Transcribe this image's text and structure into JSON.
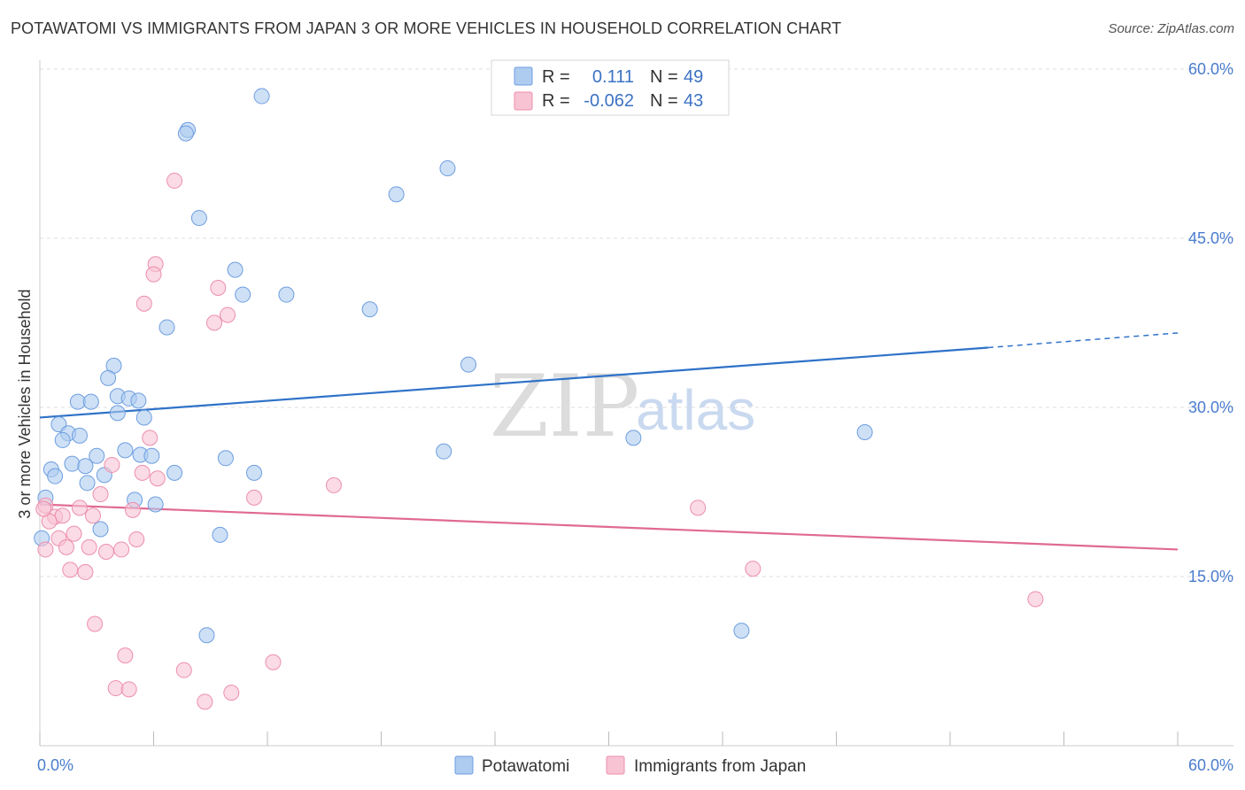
{
  "header": {
    "title": "POTAWATOMI VS IMMIGRANTS FROM JAPAN 3 OR MORE VEHICLES IN HOUSEHOLD CORRELATION CHART",
    "source": "Source: ZipAtlas.com"
  },
  "watermark": {
    "zip": "ZIP",
    "atlas": "atlas"
  },
  "legend_box": {
    "rows": [
      {
        "r_label": "R =",
        "r_value": "0.111",
        "n_label": "N =",
        "n_value": "49",
        "color": "#aecbf0",
        "stroke": "#6d9ee0"
      },
      {
        "r_label": "R =",
        "r_value": "-0.062",
        "n_label": "N =",
        "n_value": "43",
        "color": "#f8c3d3",
        "stroke": "#ec8fac"
      }
    ]
  },
  "bottom_legend": {
    "items": [
      {
        "label": "Potawatomi",
        "color": "#aecbf0",
        "stroke": "#6d9ee0"
      },
      {
        "label": "Immigrants from Japan",
        "color": "#f8c3d3",
        "stroke": "#ec8fac"
      }
    ]
  },
  "chart_data": {
    "type": "scatter",
    "title": "POTAWATOMI VS IMMIGRANTS FROM JAPAN 3 OR MORE VEHICLES IN HOUSEHOLD CORRELATION CHART",
    "xlabel": "",
    "ylabel": "3 or more Vehicles in Household",
    "xlim": [
      0,
      60
    ],
    "ylim": [
      0,
      60
    ],
    "x_tick_labels": [
      "0.0%",
      "60.0%"
    ],
    "y_ticks": [
      15,
      30,
      45,
      60
    ],
    "y_tick_labels": [
      "15.0%",
      "30.0%",
      "45.0%",
      "60.0%"
    ],
    "grid": true,
    "series": [
      {
        "name": "Potawatomi",
        "color": "#aecbf0",
        "stroke": "#6d9ee0",
        "line_color": "#2f72c8",
        "trend": {
          "x0": 0,
          "y0": 29.1,
          "x1": 50,
          "y1": 35.3,
          "dash_to_x": 60,
          "dash_to_y": 36.6
        },
        "points": [
          [
            11.7,
            57.6
          ],
          [
            7.8,
            54.6
          ],
          [
            7.7,
            54.3
          ],
          [
            21.5,
            51.2
          ],
          [
            18.8,
            48.9
          ],
          [
            8.4,
            46.8
          ],
          [
            10.3,
            42.2
          ],
          [
            10.7,
            40.0
          ],
          [
            13.0,
            40.0
          ],
          [
            17.4,
            38.7
          ],
          [
            6.7,
            37.1
          ],
          [
            22.6,
            33.8
          ],
          [
            3.9,
            33.7
          ],
          [
            3.6,
            32.6
          ],
          [
            2.0,
            30.5
          ],
          [
            2.7,
            30.5
          ],
          [
            4.1,
            31.0
          ],
          [
            4.7,
            30.8
          ],
          [
            5.2,
            30.6
          ],
          [
            4.1,
            29.5
          ],
          [
            5.5,
            29.1
          ],
          [
            1.0,
            28.5
          ],
          [
            1.5,
            27.7
          ],
          [
            2.1,
            27.5
          ],
          [
            1.2,
            27.1
          ],
          [
            3.0,
            25.7
          ],
          [
            4.5,
            26.2
          ],
          [
            5.3,
            25.8
          ],
          [
            5.9,
            25.7
          ],
          [
            9.8,
            25.5
          ],
          [
            21.3,
            26.1
          ],
          [
            31.3,
            27.3
          ],
          [
            43.5,
            27.8
          ],
          [
            1.7,
            25.0
          ],
          [
            2.4,
            24.8
          ],
          [
            0.6,
            24.5
          ],
          [
            7.1,
            24.2
          ],
          [
            11.3,
            24.2
          ],
          [
            0.8,
            23.9
          ],
          [
            3.4,
            24.0
          ],
          [
            2.5,
            23.3
          ],
          [
            0.3,
            22.0
          ],
          [
            5.0,
            21.8
          ],
          [
            6.1,
            21.4
          ],
          [
            3.2,
            19.2
          ],
          [
            9.5,
            18.7
          ],
          [
            0.1,
            18.4
          ],
          [
            8.8,
            9.8
          ],
          [
            37.0,
            10.2
          ]
        ]
      },
      {
        "name": "Immigrants from Japan",
        "color": "#f8c3d3",
        "stroke": "#ec8fac",
        "line_color": "#e06a93",
        "trend": {
          "x0": 0,
          "y0": 21.4,
          "x1": 60,
          "y1": 17.4
        },
        "points": [
          [
            7.1,
            50.1
          ],
          [
            6.1,
            42.7
          ],
          [
            6.0,
            41.8
          ],
          [
            9.4,
            40.6
          ],
          [
            5.5,
            39.2
          ],
          [
            9.9,
            38.2
          ],
          [
            9.2,
            37.5
          ],
          [
            5.8,
            27.3
          ],
          [
            3.8,
            24.9
          ],
          [
            5.4,
            24.2
          ],
          [
            6.2,
            23.7
          ],
          [
            15.5,
            23.1
          ],
          [
            3.2,
            22.3
          ],
          [
            11.3,
            22.0
          ],
          [
            0.3,
            21.3
          ],
          [
            2.1,
            21.1
          ],
          [
            4.9,
            20.9
          ],
          [
            34.7,
            21.1
          ],
          [
            0.8,
            20.3
          ],
          [
            1.2,
            20.4
          ],
          [
            2.8,
            20.4
          ],
          [
            0.5,
            19.9
          ],
          [
            1.0,
            18.4
          ],
          [
            1.8,
            18.8
          ],
          [
            5.1,
            18.3
          ],
          [
            0.3,
            17.4
          ],
          [
            1.4,
            17.6
          ],
          [
            2.6,
            17.6
          ],
          [
            3.5,
            17.2
          ],
          [
            4.3,
            17.4
          ],
          [
            1.6,
            15.6
          ],
          [
            2.4,
            15.4
          ],
          [
            37.6,
            15.7
          ],
          [
            52.5,
            13.0
          ],
          [
            2.9,
            10.8
          ],
          [
            4.5,
            8.0
          ],
          [
            12.3,
            7.4
          ],
          [
            7.6,
            6.7
          ],
          [
            4.0,
            5.1
          ],
          [
            4.7,
            5.0
          ],
          [
            10.1,
            4.7
          ],
          [
            8.7,
            3.9
          ],
          [
            0.2,
            21.0
          ]
        ]
      }
    ]
  }
}
